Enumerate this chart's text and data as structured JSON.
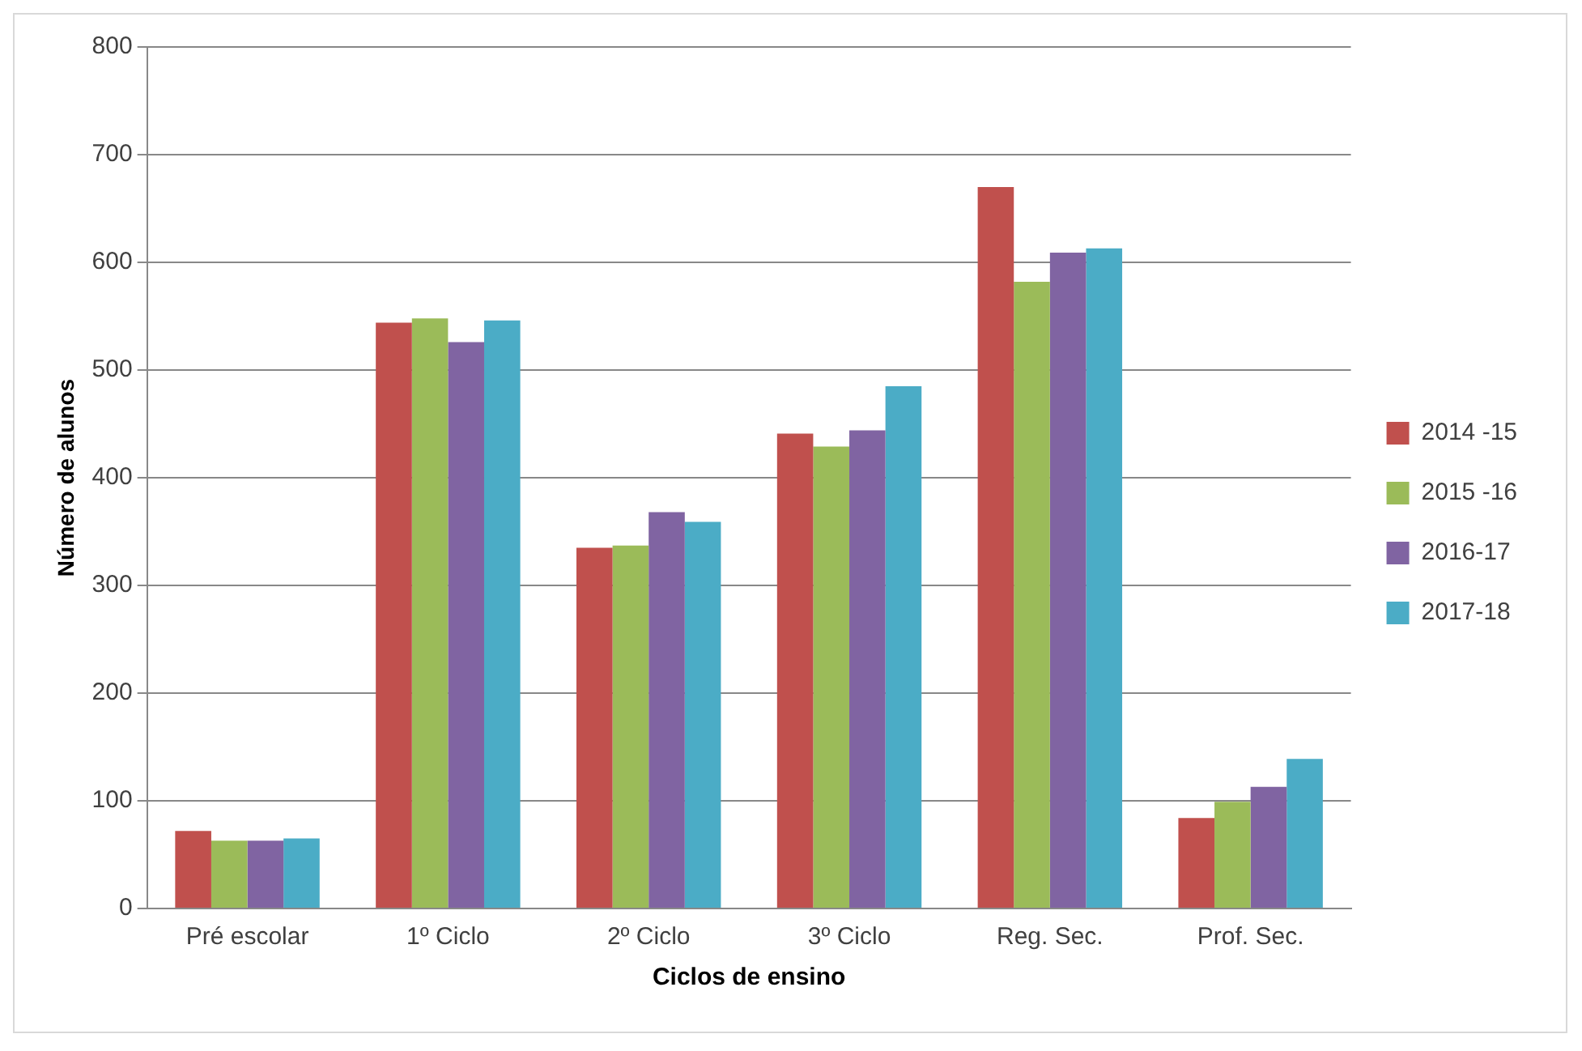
{
  "chart_data": {
    "type": "bar",
    "xlabel": "Ciclos de ensino",
    "ylabel": "Número de alunos",
    "categories": [
      "Pré escolar",
      "1º Ciclo",
      "2º Ciclo",
      "3º Ciclo",
      "Reg. Sec.",
      "Prof. Sec."
    ],
    "series": [
      {
        "name": "2014 -15",
        "color": "#c0504d",
        "values": [
          72,
          544,
          335,
          441,
          670,
          84
        ]
      },
      {
        "name": "2015 -16",
        "color": "#9bbb59",
        "values": [
          63,
          548,
          337,
          429,
          582,
          99
        ]
      },
      {
        "name": "2016-17",
        "color": "#8064a2",
        "values": [
          63,
          526,
          368,
          444,
          609,
          113
        ]
      },
      {
        "name": "2017-18",
        "color": "#4bacc6",
        "values": [
          65,
          546,
          359,
          485,
          613,
          139
        ]
      }
    ],
    "ylim": [
      0,
      800
    ],
    "yticks": [
      0,
      100,
      200,
      300,
      400,
      500,
      600,
      700,
      800
    ],
    "grid": "y",
    "legend": "right"
  }
}
